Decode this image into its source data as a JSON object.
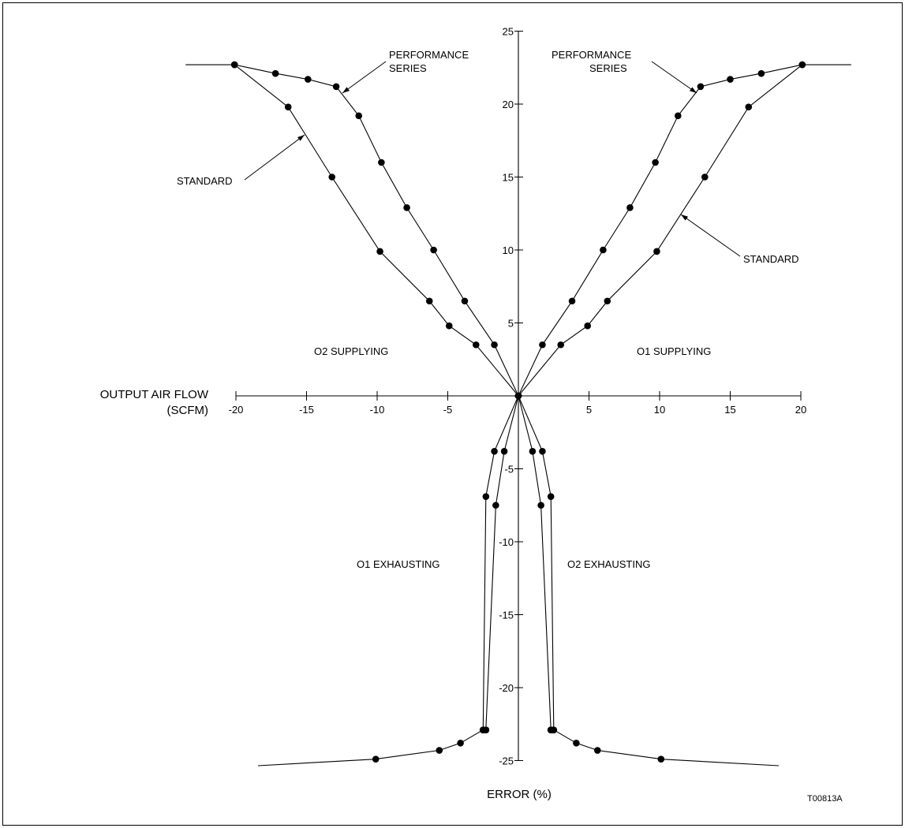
{
  "chart_data": {
    "type": "line",
    "title": "",
    "xlabel": "OUTPUT AIR FLOW\n(SCFM)",
    "ylabel": "ERROR (%)",
    "xlim": [
      -20,
      20
    ],
    "ylim": [
      -25,
      25
    ],
    "x_ticks": [
      -20,
      -15,
      -10,
      -5,
      5,
      10,
      15,
      20
    ],
    "y_ticks": [
      25,
      20,
      15,
      10,
      5,
      -5,
      -10,
      -15,
      -20,
      -25
    ],
    "x_ticks_text": [
      "-20",
      "-15",
      "-10",
      "-5",
      "5",
      "10",
      "15",
      "20"
    ],
    "y_ticks_text": [
      "25",
      "20",
      "15",
      "10",
      "5",
      "-5",
      "-10",
      "-15",
      "-20",
      "-25"
    ],
    "grid": false,
    "series": [
      {
        "name": "PERFORMANCE SERIES",
        "x": [
          20.1,
          17.2,
          15.0,
          12.9,
          11.3,
          9.7,
          7.9,
          6.0,
          3.8,
          1.7,
          0.0,
          -1.7,
          -3.8,
          -6.0,
          -7.9,
          -9.7,
          -11.3,
          -12.9,
          -14.9,
          -17.2,
          -20.1
        ],
        "y": [
          22.7,
          22.1,
          21.7,
          21.2,
          19.2,
          16.0,
          12.9,
          10.0,
          6.5,
          3.5,
          0.0,
          3.5,
          6.5,
          10.0,
          12.9,
          16.0,
          19.2,
          21.2,
          21.7,
          22.1,
          22.7
        ]
      },
      {
        "name": "STANDARD",
        "x": [
          20.1,
          16.3,
          13.2,
          9.8,
          6.3,
          4.9,
          3.0,
          0.0,
          -3.0,
          -4.9,
          -6.3,
          -9.8,
          -13.2,
          -16.3,
          -20.1
        ],
        "y": [
          22.7,
          19.8,
          15.0,
          9.9,
          6.5,
          4.8,
          3.5,
          0.0,
          3.5,
          4.8,
          6.5,
          9.9,
          15.0,
          19.8,
          22.7
        ]
      },
      {
        "name": "O1 EXHAUSTING",
        "x": [
          0.0,
          -1.7,
          -2.3,
          -2.5,
          -2.5,
          -4.1,
          -5.6,
          -10.1
        ],
        "y": [
          0.0,
          -3.8,
          -6.9,
          -22.9,
          -22.9,
          -23.8,
          -24.3,
          -24.9
        ]
      },
      {
        "name": "O1 EXHAUSTING",
        "x": [
          0.0,
          -1.0,
          -1.6,
          -2.3,
          -2.3
        ],
        "y": [
          0.0,
          -3.8,
          -7.5,
          -22.9,
          -22.9
        ]
      },
      {
        "name": "O2 EXHAUSTING",
        "x": [
          0.0,
          1.7,
          2.3,
          2.5,
          2.5,
          4.1,
          5.6,
          10.1
        ],
        "y": [
          0.0,
          -3.8,
          -6.9,
          -22.9,
          -22.9,
          -23.8,
          -24.3,
          -24.9
        ]
      },
      {
        "name": "O2 EXHAUSTING",
        "x": [
          0.0,
          1.0,
          1.6,
          2.3,
          2.3
        ],
        "y": [
          0.0,
          -3.8,
          -7.5,
          -22.9,
          -22.9
        ]
      }
    ],
    "annotations": [
      {
        "text": "PERFORMANCE",
        "region": "upper-left"
      },
      {
        "text": "SERIES",
        "region": "upper-left"
      },
      {
        "text": "STANDARD",
        "region": "upper-left"
      },
      {
        "text": "PERFORMANCE",
        "region": "upper-right"
      },
      {
        "text": "SERIES",
        "region": "upper-right"
      },
      {
        "text": "STANDARD",
        "region": "upper-right"
      },
      {
        "text": "O2 SUPPLYING",
        "region": "upper-left"
      },
      {
        "text": "O1 SUPPLYING",
        "region": "upper-right"
      },
      {
        "text": "O1 EXHAUSTING",
        "region": "lower-left"
      },
      {
        "text": "O2 EXHAUSTING",
        "region": "lower-right"
      }
    ],
    "figure_code": "T00813A"
  },
  "labels": {
    "x_title_line1": "OUTPUT AIR FLOW",
    "x_title_line2": "(SCFM)",
    "y_title": "ERROR (%)",
    "perf_left_line1": "PERFORMANCE",
    "perf_left_line2": "SERIES",
    "std_left": "STANDARD",
    "perf_right_line1": "PERFORMANCE",
    "perf_right_line2": "SERIES",
    "std_right": "STANDARD",
    "o2_supplying": "O2 SUPPLYING",
    "o1_supplying": "O1 SUPPLYING",
    "o1_exhausting": "O1 EXHAUSTING",
    "o2_exhausting": "O2 EXHAUSTING",
    "figure_code": "T00813A"
  }
}
